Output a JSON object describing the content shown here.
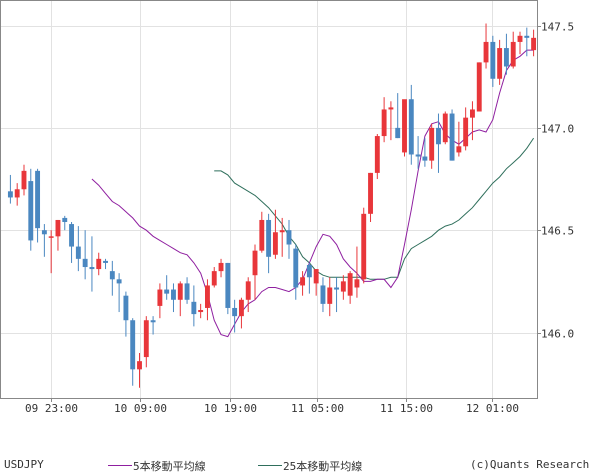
{
  "chart_data": {
    "type": "candlestick",
    "symbol": "USDJPY",
    "ylim": [
      145.68,
      147.62
    ],
    "y_ticks": [
      "147.5",
      "147.0",
      "146.5",
      "146.0"
    ],
    "x_tick_labels": [
      "09 23:00",
      "10 09:00",
      "10 19:00",
      "11 05:00",
      "11 15:00",
      "12 01:00"
    ],
    "colors": {
      "up": "#e8363a",
      "down": "#4a87c0",
      "ma5": "#8f1fa0",
      "ma25": "#2f6f5c",
      "grid": "#e2e2e2",
      "axis": "#888888"
    },
    "legend": {
      "ma5": "5本移動平均線",
      "ma25": "25本移動平均線"
    },
    "credit": "(c)Quants Research",
    "candles": [
      [
        146.69,
        146.77,
        146.63,
        146.66
      ],
      [
        146.66,
        146.73,
        146.62,
        146.7
      ],
      [
        146.7,
        146.82,
        146.67,
        146.79
      ],
      [
        146.74,
        146.8,
        146.4,
        146.45
      ],
      [
        146.79,
        146.8,
        146.44,
        146.51
      ],
      [
        146.5,
        146.53,
        146.37,
        146.48
      ],
      [
        146.47,
        146.5,
        146.29,
        146.47
      ],
      [
        146.47,
        146.55,
        146.4,
        146.55
      ],
      [
        146.56,
        146.57,
        146.5,
        146.54
      ],
      [
        146.53,
        146.54,
        146.34,
        146.42
      ],
      [
        146.42,
        146.52,
        146.3,
        146.36
      ],
      [
        146.36,
        146.5,
        146.26,
        146.32
      ],
      [
        146.32,
        146.47,
        146.2,
        146.31
      ],
      [
        146.31,
        146.39,
        146.28,
        146.36
      ],
      [
        146.35,
        146.36,
        146.31,
        146.34
      ],
      [
        146.3,
        146.35,
        146.18,
        146.26
      ],
      [
        146.26,
        146.29,
        146.1,
        146.24
      ],
      [
        146.18,
        146.2,
        145.98,
        146.06
      ],
      [
        146.06,
        146.07,
        145.74,
        145.82
      ],
      [
        145.82,
        145.9,
        145.73,
        145.86
      ],
      [
        145.88,
        146.08,
        145.83,
        146.06
      ],
      [
        146.06,
        146.08,
        145.99,
        146.05
      ],
      [
        146.13,
        146.24,
        146.07,
        146.21
      ],
      [
        146.21,
        146.28,
        146.16,
        146.19
      ],
      [
        146.21,
        146.24,
        146.1,
        146.16
      ],
      [
        146.16,
        146.25,
        146.08,
        146.24
      ],
      [
        146.24,
        146.27,
        146.14,
        146.16
      ],
      [
        146.15,
        146.23,
        146.03,
        146.09
      ],
      [
        146.1,
        146.14,
        146.07,
        146.11
      ],
      [
        146.12,
        146.26,
        146.06,
        146.23
      ],
      [
        146.23,
        146.32,
        146.22,
        146.3
      ],
      [
        146.3,
        146.36,
        146.27,
        146.34
      ],
      [
        146.34,
        146.34,
        146.09,
        146.12
      ],
      [
        146.12,
        146.16,
        146.0,
        146.08
      ],
      [
        146.08,
        146.17,
        146.02,
        146.16
      ],
      [
        146.16,
        146.27,
        146.1,
        146.25
      ],
      [
        146.28,
        146.43,
        146.16,
        146.4
      ],
      [
        146.4,
        146.59,
        146.39,
        146.55
      ],
      [
        146.55,
        146.58,
        146.29,
        146.37
      ],
      [
        146.38,
        146.6,
        146.36,
        146.49
      ],
      [
        146.49,
        146.56,
        146.37,
        146.5
      ],
      [
        146.5,
        146.55,
        146.36,
        146.43
      ],
      [
        146.41,
        146.43,
        146.16,
        146.22
      ],
      [
        146.23,
        146.3,
        146.18,
        146.27
      ],
      [
        146.33,
        146.34,
        146.19,
        146.27
      ],
      [
        146.24,
        146.31,
        146.18,
        146.31
      ],
      [
        146.23,
        146.27,
        146.1,
        146.14
      ],
      [
        146.14,
        146.27,
        146.08,
        146.22
      ],
      [
        146.22,
        146.27,
        146.1,
        146.21
      ],
      [
        146.2,
        146.28,
        146.16,
        146.25
      ],
      [
        146.18,
        146.3,
        146.14,
        146.29
      ],
      [
        146.22,
        146.42,
        146.17,
        146.26
      ],
      [
        146.26,
        146.61,
        146.24,
        146.58
      ],
      [
        146.58,
        146.78,
        146.54,
        146.78
      ],
      [
        146.78,
        146.97,
        146.75,
        146.96
      ],
      [
        146.96,
        147.15,
        146.93,
        147.09
      ],
      [
        147.09,
        147.13,
        146.94,
        147.1
      ],
      [
        147.0,
        147.17,
        146.95,
        146.95
      ],
      [
        146.88,
        147.13,
        146.86,
        147.14
      ],
      [
        147.14,
        147.21,
        146.82,
        146.87
      ],
      [
        146.87,
        146.96,
        146.8,
        146.86
      ],
      [
        146.86,
        146.95,
        146.81,
        146.84
      ],
      [
        146.84,
        147.02,
        146.8,
        147.0
      ],
      [
        147.0,
        147.07,
        146.78,
        146.92
      ],
      [
        146.93,
        147.08,
        146.92,
        147.07
      ],
      [
        147.07,
        147.09,
        146.84,
        146.84
      ],
      [
        146.88,
        147.03,
        146.86,
        146.91
      ],
      [
        146.91,
        147.1,
        146.89,
        147.05
      ],
      [
        147.05,
        147.13,
        146.94,
        147.09
      ],
      [
        147.08,
        147.32,
        147.08,
        147.32
      ],
      [
        147.32,
        147.51,
        147.29,
        147.42
      ],
      [
        147.42,
        147.45,
        147.2,
        147.24
      ],
      [
        147.24,
        147.43,
        147.21,
        147.39
      ],
      [
        147.39,
        147.46,
        147.26,
        147.3
      ],
      [
        147.3,
        147.47,
        147.29,
        147.42
      ],
      [
        147.42,
        147.47,
        147.36,
        147.45
      ],
      [
        147.45,
        147.49,
        147.35,
        147.44
      ],
      [
        147.38,
        147.48,
        147.35,
        147.44
      ]
    ],
    "ma5": [
      146.75,
      146.72,
      146.68,
      146.64,
      146.62,
      146.59,
      146.56,
      146.52,
      146.5,
      146.47,
      146.45,
      146.43,
      146.41,
      146.39,
      146.38,
      146.34,
      146.29,
      146.19,
      146.06,
      145.99,
      145.98,
      146.04,
      146.1,
      146.14,
      146.16,
      146.2,
      146.22,
      146.22,
      146.21,
      146.2,
      146.22,
      146.26,
      146.34,
      146.42,
      146.48,
      146.47,
      146.43,
      146.36,
      146.32,
      146.29,
      146.25,
      146.25,
      146.26,
      146.26,
      146.22,
      146.27,
      146.43,
      146.6,
      146.79,
      146.96,
      147.02,
      147.03,
      146.97,
      146.94,
      146.92,
      146.95,
      146.98,
      146.99,
      146.98,
      147.04,
      147.17,
      147.28,
      147.33,
      147.35,
      147.38,
      147.38
    ],
    "ma25": [
      146.79,
      146.79,
      146.77,
      146.73,
      146.71,
      146.69,
      146.67,
      146.64,
      146.61,
      146.57,
      146.53,
      146.47,
      146.43,
      146.37,
      146.34,
      146.3,
      146.28,
      146.27,
      146.27,
      146.27,
      146.27,
      146.27,
      146.27,
      146.26,
      146.26,
      146.26,
      146.27,
      146.27,
      146.36,
      146.41,
      146.43,
      146.45,
      146.47,
      146.5,
      146.52,
      146.53,
      146.55,
      146.58,
      146.61,
      146.65,
      146.69,
      146.73,
      146.76,
      146.8,
      146.83,
      146.86,
      146.9,
      146.95
    ]
  }
}
